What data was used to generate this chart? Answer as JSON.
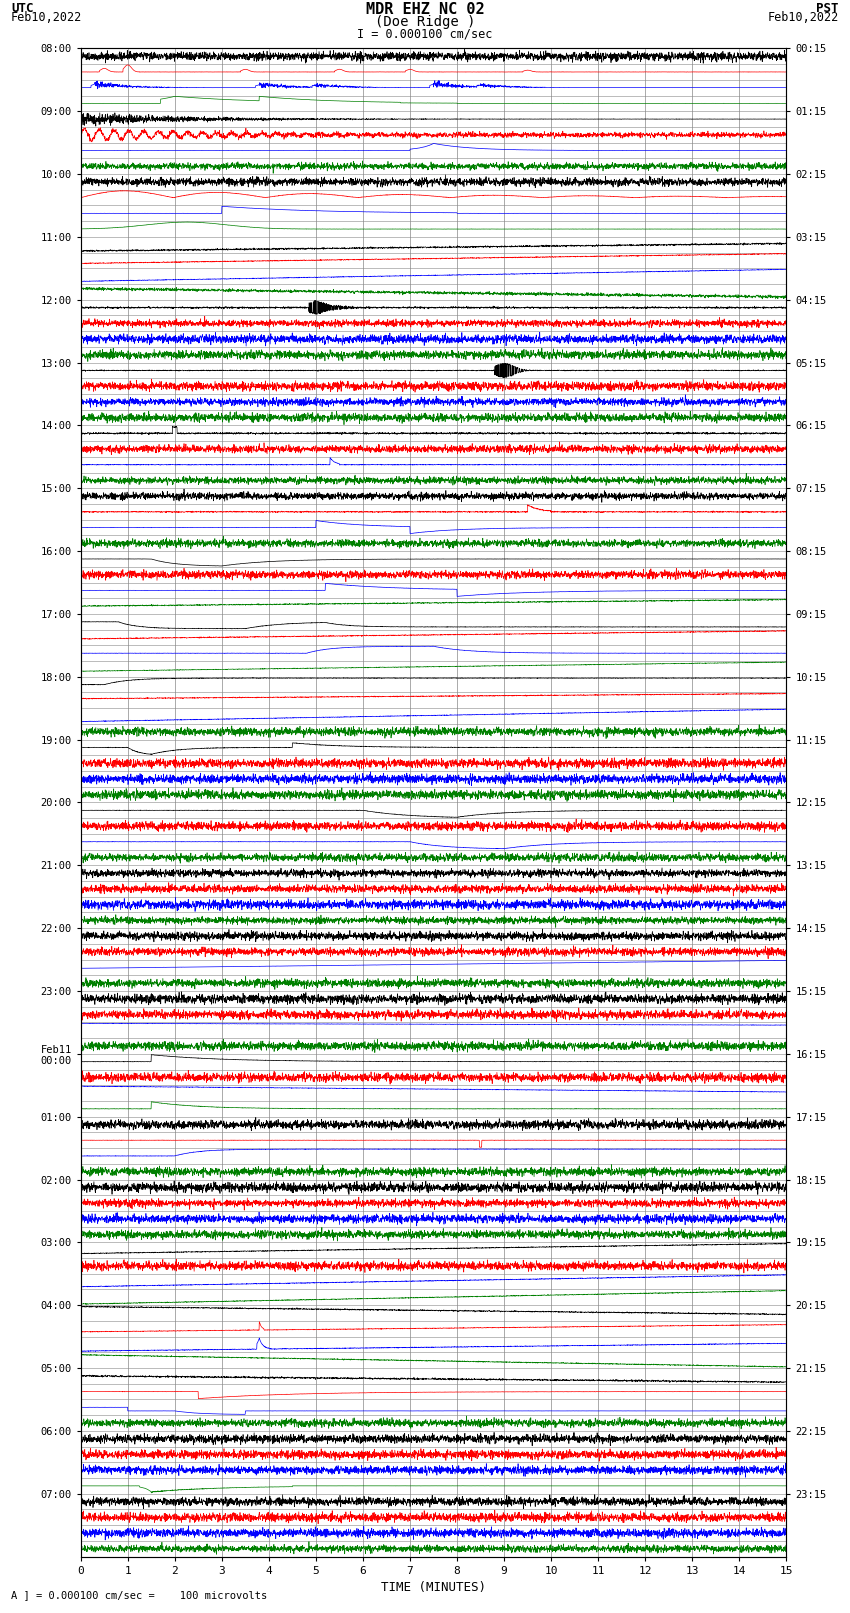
{
  "title_line1": "MDR EHZ NC 02",
  "title_line2": "(Doe Ridge )",
  "title_scale": "I = 0.000100 cm/sec",
  "left_label1": "UTC",
  "left_label2": "Feb10,2022",
  "right_label1": "PST",
  "right_label2": "Feb10,2022",
  "xlabel": "TIME (MINUTES)",
  "bottom_note": "A ] = 0.000100 cm/sec =    100 microvolts",
  "xlim": [
    0,
    15
  ],
  "bg_color": "#ffffff",
  "grid_color": "#888888",
  "colors_order": [
    "black",
    "red",
    "blue",
    "green"
  ],
  "utc_hour_labels": [
    "08:00",
    "09:00",
    "10:00",
    "11:00",
    "12:00",
    "13:00",
    "14:00",
    "15:00",
    "16:00",
    "17:00",
    "18:00",
    "19:00",
    "20:00",
    "21:00",
    "22:00",
    "23:00",
    "Feb11\n00:00",
    "01:00",
    "02:00",
    "03:00",
    "04:00",
    "05:00",
    "06:00",
    "07:00"
  ],
  "pst_hour_labels": [
    "00:15",
    "01:15",
    "02:15",
    "03:15",
    "04:15",
    "05:15",
    "06:15",
    "07:15",
    "08:15",
    "09:15",
    "10:15",
    "11:15",
    "12:15",
    "13:15",
    "14:15",
    "15:15",
    "16:15",
    "17:15",
    "18:15",
    "19:15",
    "20:15",
    "21:15",
    "22:15",
    "23:15"
  ],
  "n_hours": 24,
  "traces_per_hour": 4,
  "figsize": [
    8.5,
    16.13
  ],
  "dpi": 100
}
